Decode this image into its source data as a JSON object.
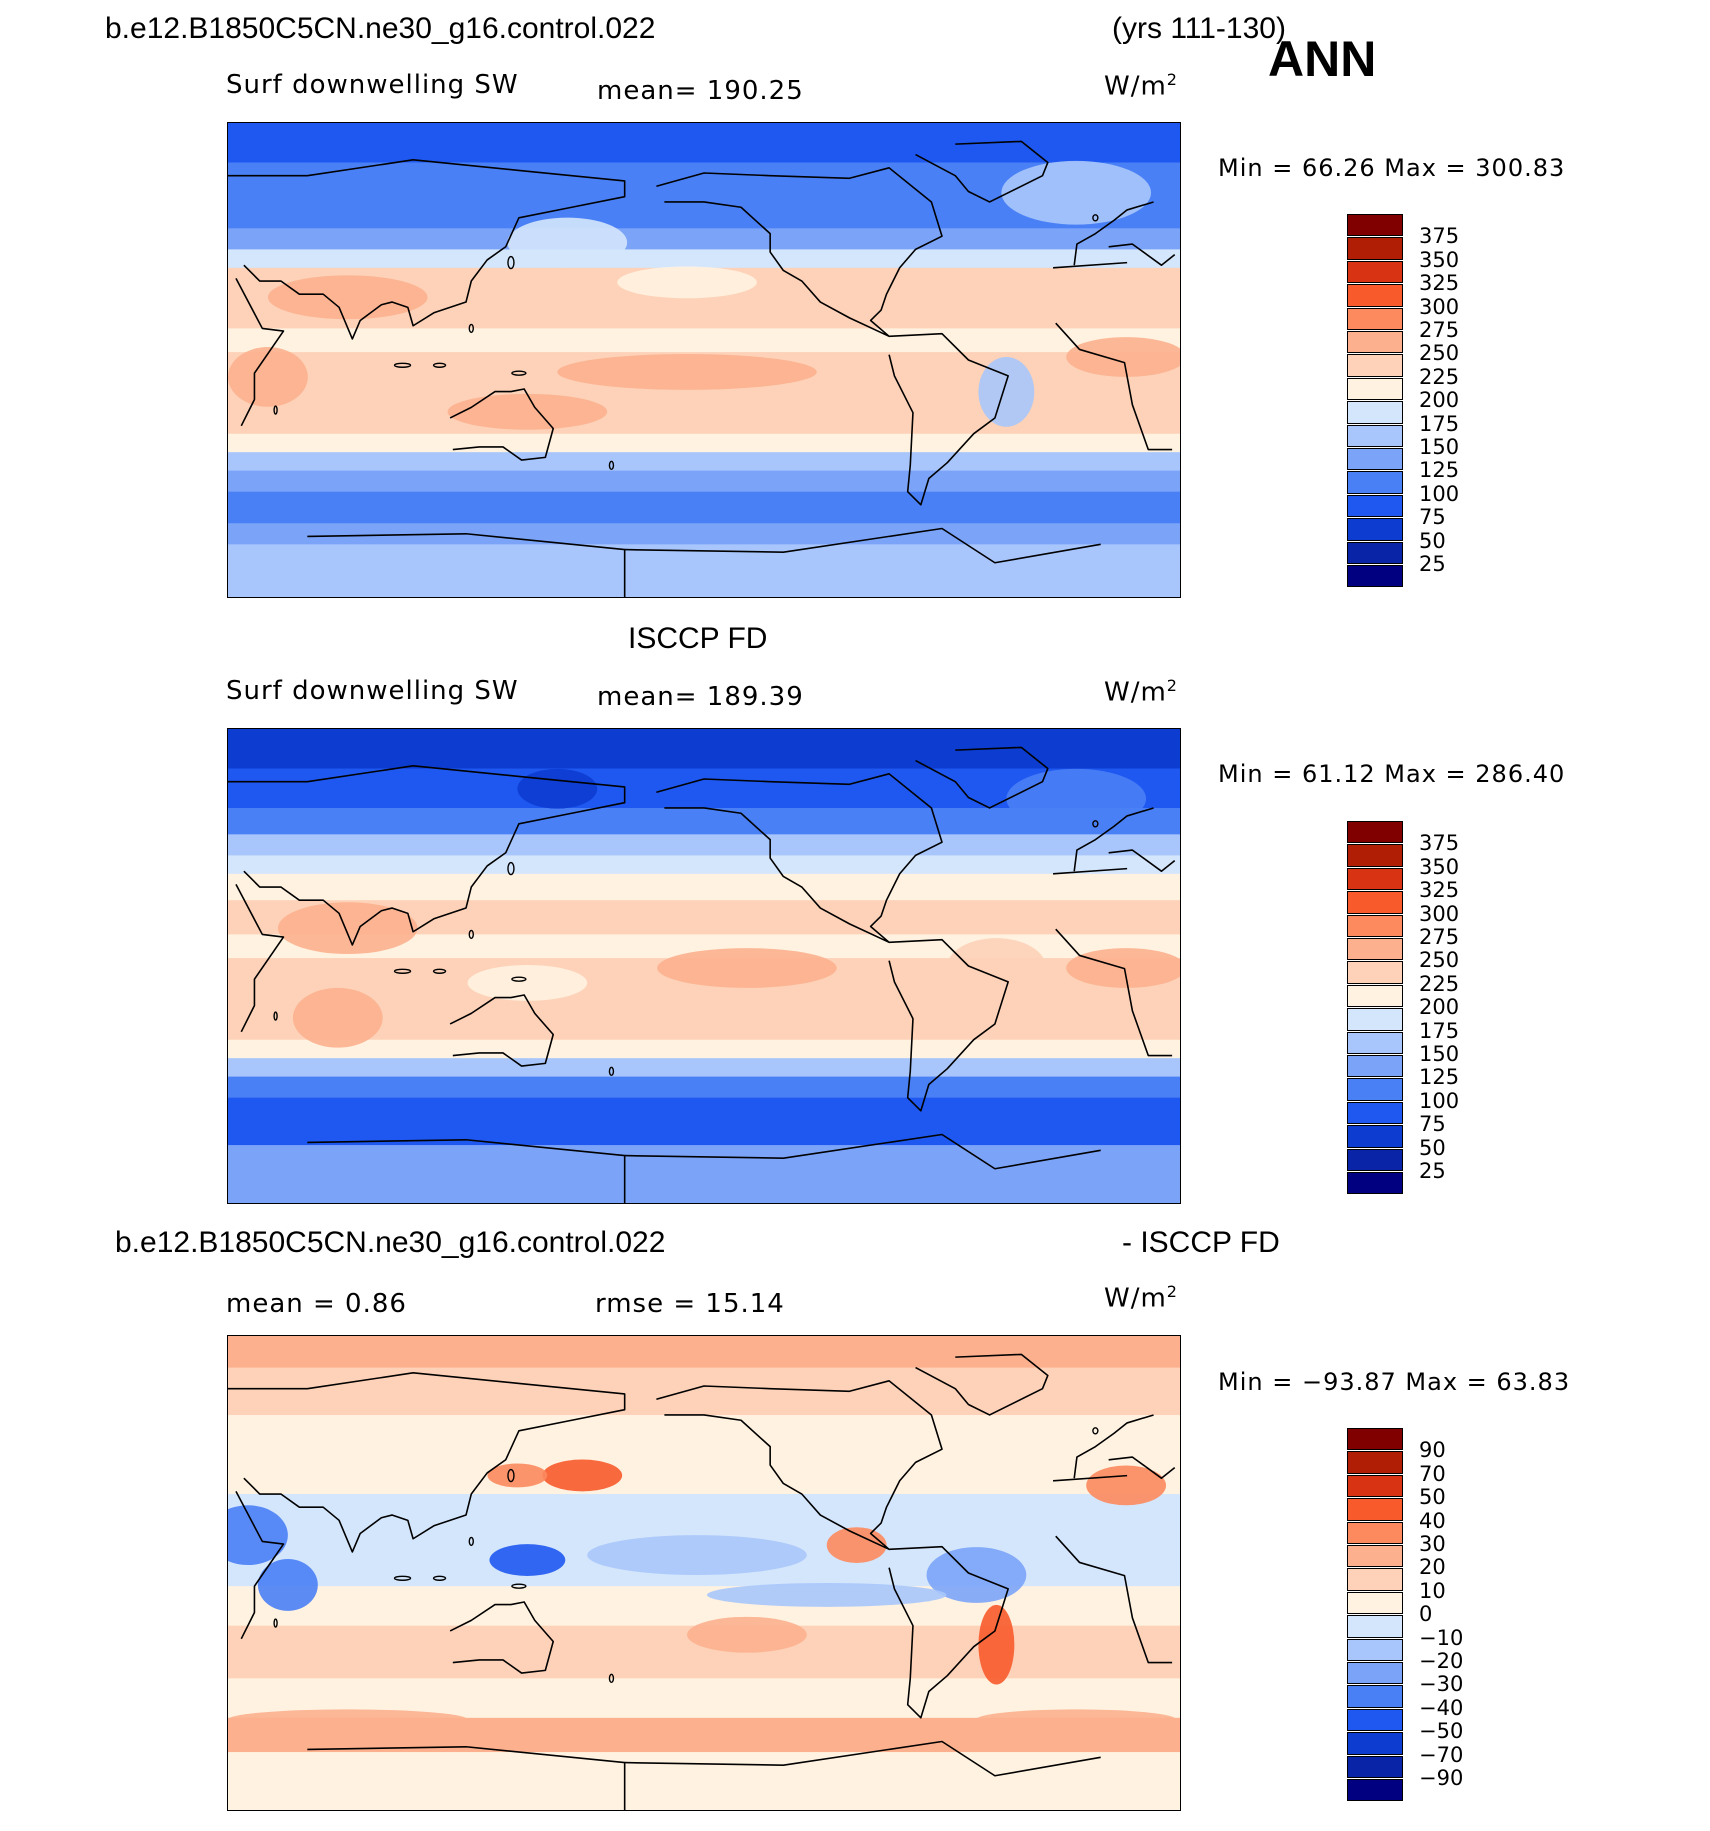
{
  "header": {
    "case_name": "b.e12.B1850C5CN.ne30_g16.control.022",
    "years": "(yrs 111-130)",
    "season": "ANN"
  },
  "colors": {
    "abs": [
      "#000080",
      "#0a24a8",
      "#0c3cd0",
      "#1e58f0",
      "#4a80f6",
      "#7ba4f8",
      "#a8c6fb",
      "#d4e6fc",
      "#fff2e0",
      "#fdd2b8",
      "#fcb08e",
      "#fc8a5e",
      "#f85a2c",
      "#d83414",
      "#b01e06",
      "#800000"
    ],
    "diff": [
      "#000080",
      "#0a24a8",
      "#0c3cd0",
      "#1e58f0",
      "#4a80f6",
      "#7ba4f8",
      "#a8c6fb",
      "#d4e6fc",
      "#fff2e0",
      "#fdd2b8",
      "#fcb08e",
      "#fc8a5e",
      "#f85a2c",
      "#d83414",
      "#b01e06",
      "#800000"
    ]
  },
  "panels": [
    {
      "name": "model",
      "variable": "Surf  downwelling SW",
      "stat": "mean=  190.25",
      "units": "W/m",
      "units_sup": "2",
      "minmax": "Min  =    66.26  Max  =  300.83",
      "levels": [
        "375",
        "350",
        "325",
        "300",
        "275",
        "250",
        "225",
        "200",
        "175",
        "150",
        "125",
        "100",
        "75",
        "50",
        "25"
      ]
    },
    {
      "name": "obs",
      "title": "ISCCP FD",
      "variable": "Surf  downwelling SW",
      "stat": "mean=  189.39",
      "units": "W/m",
      "units_sup": "2",
      "minmax": "Min  =    61.12  Max  =  286.40",
      "levels": [
        "375",
        "350",
        "325",
        "300",
        "275",
        "250",
        "225",
        "200",
        "175",
        "150",
        "125",
        "100",
        "75",
        "50",
        "25"
      ]
    },
    {
      "name": "diff",
      "title_left": "b.e12.B1850C5CN.ne30_g16.control.022",
      "title_right": "- ISCCP FD",
      "stat_left": "mean  =     0.86",
      "stat_right": "rmse  =    15.14",
      "units": "W/m",
      "units_sup": "2",
      "minmax": "Min  = −93.87  Max  =    63.83",
      "levels": [
        "90",
        "70",
        "50",
        "40",
        "30",
        "20",
        "10",
        "0",
        "−10",
        "−20",
        "−30",
        "−40",
        "−50",
        "−70",
        "−90"
      ]
    }
  ]
}
